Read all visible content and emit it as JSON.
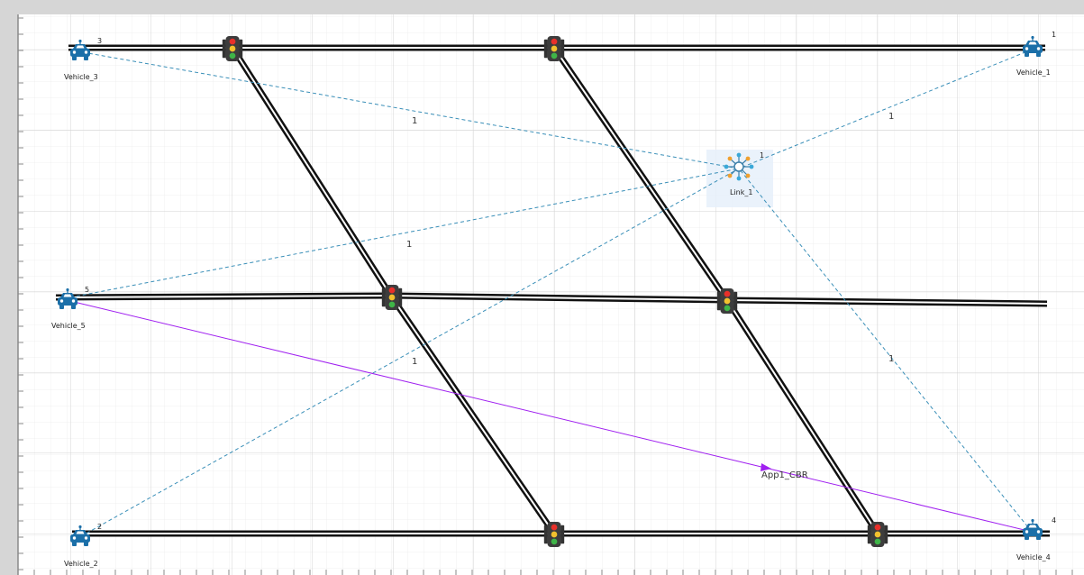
{
  "vehicles": [
    {
      "id": "3",
      "label": "Vehicle_3"
    },
    {
      "id": "1",
      "label": "Vehicle_1"
    },
    {
      "id": "5",
      "label": "Vehicle_5"
    },
    {
      "id": "2",
      "label": "Vehicle_2"
    },
    {
      "id": "4",
      "label": "Vehicle_4"
    }
  ],
  "link": {
    "id": "1",
    "label": "Link_1"
  },
  "wireless_links": [
    {
      "from": "Vehicle_3",
      "label": "1"
    },
    {
      "from": "Vehicle_1",
      "label": "1"
    },
    {
      "from": "Vehicle_5",
      "label": "1"
    },
    {
      "from": "Vehicle_2",
      "label": "1"
    },
    {
      "from": "Vehicle_4",
      "label": "1"
    }
  ],
  "application": {
    "label": "App1_CBR",
    "from": "Vehicle_5",
    "to": "Vehicle_4"
  },
  "colors": {
    "vehicle": "#1b6fa8",
    "wireless_link": "#3a8fb8",
    "application": "#a020f0",
    "road": "#111111",
    "grid": "#e4e4e4"
  }
}
